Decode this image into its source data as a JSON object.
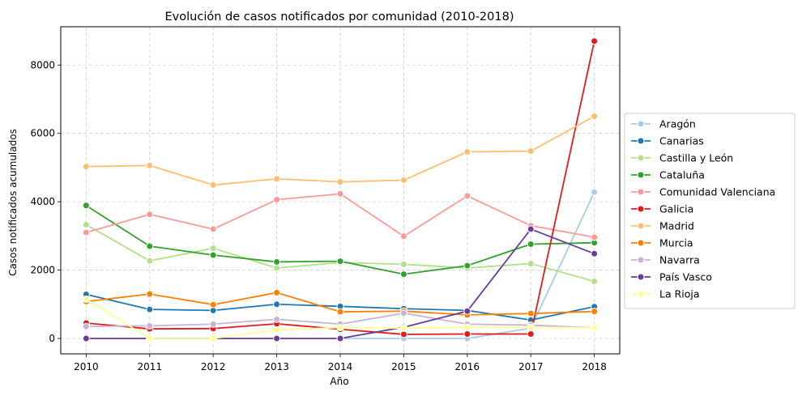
{
  "chart_data": {
    "type": "line",
    "title": "Evolución de casos notificados por comunidad (2010-2018)",
    "xlabel": "Año",
    "ylabel": "Casos notificados acumulados",
    "x": [
      2010,
      2011,
      2012,
      2013,
      2014,
      2015,
      2016,
      2017,
      2018
    ],
    "xlim": [
      2009.6,
      2018.4
    ],
    "ylim": [
      -450,
      9120
    ],
    "yticks": [
      0,
      2000,
      4000,
      6000,
      8000
    ],
    "grid": true,
    "legend_position": "center-right",
    "series": [
      {
        "name": "Aragón",
        "color": "#a6cee3",
        "values": [
          0,
          0,
          0,
          0,
          0,
          0,
          0,
          300,
          4280
        ]
      },
      {
        "name": "Canarias",
        "color": "#1f78b4",
        "values": [
          1290,
          850,
          820,
          1000,
          940,
          870,
          820,
          540,
          930
        ]
      },
      {
        "name": "Castilla y León",
        "color": "#b2df8a",
        "values": [
          3330,
          2270,
          2640,
          2060,
          2220,
          2170,
          2060,
          2190,
          1670
        ]
      },
      {
        "name": "Cataluña",
        "color": "#33a02c",
        "values": [
          3890,
          2700,
          2440,
          2240,
          2260,
          1880,
          2130,
          2760,
          2800
        ]
      },
      {
        "name": "Comunidad Valenciana",
        "color": "#fb9a99",
        "values": [
          3100,
          3630,
          3200,
          4060,
          4230,
          2990,
          4170,
          3300,
          2960
        ]
      },
      {
        "name": "Galicia",
        "color": "#e31a1c",
        "values": [
          450,
          280,
          290,
          430,
          270,
          120,
          130,
          130,
          8700
        ]
      },
      {
        "name": "Madrid",
        "color": "#fdbf6f",
        "values": [
          5030,
          5060,
          4490,
          4670,
          4580,
          4630,
          5460,
          5480,
          6500
        ]
      },
      {
        "name": "Murcia",
        "color": "#ff7f00",
        "values": [
          1080,
          1300,
          990,
          1340,
          780,
          800,
          690,
          730,
          790
        ]
      },
      {
        "name": "Navarra",
        "color": "#cab2d6",
        "values": [
          350,
          370,
          420,
          560,
          420,
          740,
          420,
          390,
          310
        ]
      },
      {
        "name": "País Vasco",
        "color": "#6a3d9a",
        "values": [
          0,
          0,
          0,
          0,
          0,
          330,
          800,
          3200,
          2480
        ]
      },
      {
        "name": "La Rioja",
        "color": "#ffff99",
        "values": [
          1150,
          0,
          0,
          250,
          320,
          300,
          330,
          330,
          310
        ]
      }
    ]
  }
}
